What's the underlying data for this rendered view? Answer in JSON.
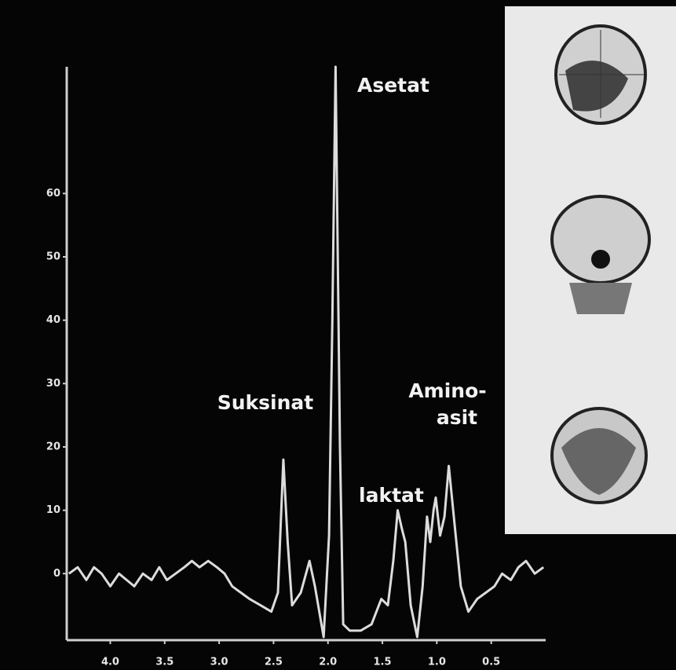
{
  "chart_data": {
    "type": "line",
    "xlim": [
      4.4,
      0
    ],
    "ylim": [
      -10.5,
      80
    ],
    "xticks": [
      {
        "value": 4,
        "label": "4.0"
      },
      3.5,
      {
        "value": 3,
        "label": "3.0"
      },
      2.5,
      {
        "value": 2,
        "label": "2.0"
      },
      1.5,
      {
        "value": 1,
        "label": "1.0"
      },
      0.5
    ],
    "yticks": [
      0,
      10,
      20,
      30,
      40,
      50,
      60
    ],
    "grid": false,
    "annotations": [
      "Asetat",
      "Suksinat",
      "laktat",
      "Amino-",
      "asit"
    ],
    "series": [
      {
        "color": "#dcdcdc",
        "x": [
          4.38,
          4.3,
          4.22,
          4.15,
          4.08,
          4.0,
          3.92,
          3.85,
          3.78,
          3.7,
          3.62,
          3.55,
          3.48,
          3.4,
          3.32,
          3.25,
          3.18,
          3.1,
          3.02,
          2.95,
          2.88,
          2.8,
          2.72,
          2.62,
          2.52,
          2.46,
          2.41,
          2.37,
          2.33,
          2.25,
          2.17,
          2.12,
          2.04,
          1.99,
          1.96,
          1.93,
          1.89,
          1.86,
          1.8,
          1.7,
          1.6,
          1.51,
          1.45,
          1.4,
          1.36,
          1.32,
          1.29,
          1.24,
          1.18,
          1.13,
          1.09,
          1.06,
          1.03,
          1.01,
          0.97,
          0.93,
          0.89,
          0.85,
          0.78,
          0.71,
          0.63,
          0.55,
          0.47,
          0.4,
          0.32,
          0.25,
          0.18,
          0.1,
          0.02
        ],
        "y": [
          0,
          1,
          -1,
          1,
          0,
          -2,
          0,
          -1,
          -2,
          0,
          -1,
          1,
          -1,
          0,
          1,
          2,
          1,
          2,
          1,
          0,
          -2,
          -3,
          -4,
          -5,
          -6,
          -3,
          18,
          5,
          -5,
          -3,
          2,
          -2,
          -10,
          6,
          40,
          80,
          20,
          -8,
          -9,
          -9,
          -8,
          -4,
          -5,
          2,
          10,
          7,
          5,
          -5,
          -10,
          -2,
          9,
          5,
          10,
          12,
          6,
          9,
          17,
          10,
          -2,
          -6,
          -4,
          -3,
          -2,
          0,
          -1,
          1,
          2,
          0,
          1
        ]
      }
    ]
  }
}
